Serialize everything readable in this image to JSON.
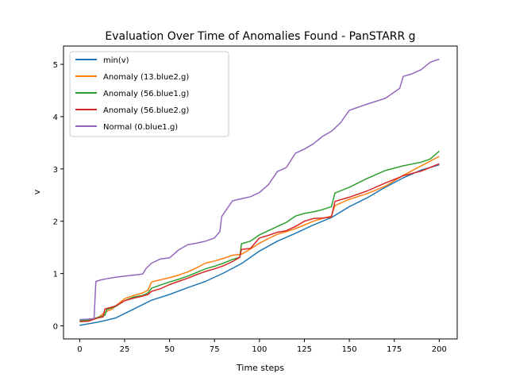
{
  "chart_data": {
    "type": "line",
    "title": "Evaluation Over Time of Anomalies Found - PanSTARR g",
    "xlabel": "Time steps",
    "ylabel": "v",
    "xlim": [
      -9,
      210
    ],
    "ylim": [
      -0.25,
      5.35
    ],
    "xticks": [
      0,
      25,
      50,
      75,
      100,
      125,
      150,
      175,
      200
    ],
    "yticks": [
      0,
      1,
      2,
      3,
      4,
      5
    ],
    "grid": false,
    "legend_position": "upper-left",
    "series": [
      {
        "name": "min(v)",
        "color": "#1f77b4",
        "points": [
          [
            0,
            0.01
          ],
          [
            10,
            0.07
          ],
          [
            20,
            0.15
          ],
          [
            30,
            0.32
          ],
          [
            40,
            0.49
          ],
          [
            50,
            0.6
          ],
          [
            60,
            0.73
          ],
          [
            70,
            0.85
          ],
          [
            80,
            1.01
          ],
          [
            90,
            1.19
          ],
          [
            100,
            1.43
          ],
          [
            110,
            1.62
          ],
          [
            120,
            1.77
          ],
          [
            130,
            1.93
          ],
          [
            140,
            2.07
          ],
          [
            150,
            2.28
          ],
          [
            160,
            2.45
          ],
          [
            170,
            2.65
          ],
          [
            180,
            2.83
          ],
          [
            190,
            2.98
          ],
          [
            200,
            3.08
          ]
        ]
      },
      {
        "name": "Anomaly (13.blue2.g)",
        "color": "#ff7f0e",
        "points": [
          [
            0,
            0.09
          ],
          [
            5,
            0.1
          ],
          [
            10,
            0.15
          ],
          [
            14,
            0.26
          ],
          [
            18,
            0.32
          ],
          [
            20,
            0.38
          ],
          [
            25,
            0.52
          ],
          [
            30,
            0.58
          ],
          [
            35,
            0.63
          ],
          [
            38,
            0.68
          ],
          [
            40,
            0.84
          ],
          [
            45,
            0.88
          ],
          [
            50,
            0.92
          ],
          [
            55,
            0.97
          ],
          [
            60,
            1.03
          ],
          [
            65,
            1.11
          ],
          [
            70,
            1.2
          ],
          [
            75,
            1.24
          ],
          [
            80,
            1.29
          ],
          [
            85,
            1.35
          ],
          [
            90,
            1.37
          ],
          [
            95,
            1.47
          ],
          [
            100,
            1.58
          ],
          [
            105,
            1.67
          ],
          [
            110,
            1.75
          ],
          [
            115,
            1.8
          ],
          [
            120,
            1.86
          ],
          [
            125,
            1.93
          ],
          [
            130,
            2.0
          ],
          [
            135,
            2.05
          ],
          [
            140,
            2.1
          ],
          [
            142,
            2.3
          ],
          [
            150,
            2.42
          ],
          [
            160,
            2.53
          ],
          [
            170,
            2.67
          ],
          [
            180,
            2.88
          ],
          [
            190,
            3.06
          ],
          [
            200,
            3.24
          ]
        ]
      },
      {
        "name": "Anomaly (56.blue1.g)",
        "color": "#2ca02c",
        "points": [
          [
            0,
            0.1
          ],
          [
            5,
            0.11
          ],
          [
            10,
            0.16
          ],
          [
            14,
            0.2
          ],
          [
            15,
            0.31
          ],
          [
            20,
            0.37
          ],
          [
            25,
            0.48
          ],
          [
            30,
            0.55
          ],
          [
            35,
            0.58
          ],
          [
            38,
            0.63
          ],
          [
            40,
            0.72
          ],
          [
            45,
            0.78
          ],
          [
            50,
            0.84
          ],
          [
            55,
            0.89
          ],
          [
            60,
            0.95
          ],
          [
            65,
            1.02
          ],
          [
            70,
            1.09
          ],
          [
            75,
            1.14
          ],
          [
            80,
            1.2
          ],
          [
            85,
            1.27
          ],
          [
            89,
            1.31
          ],
          [
            90,
            1.57
          ],
          [
            95,
            1.62
          ],
          [
            100,
            1.74
          ],
          [
            105,
            1.82
          ],
          [
            110,
            1.9
          ],
          [
            115,
            1.98
          ],
          [
            120,
            2.1
          ],
          [
            125,
            2.15
          ],
          [
            130,
            2.18
          ],
          [
            135,
            2.22
          ],
          [
            140,
            2.28
          ],
          [
            142,
            2.54
          ],
          [
            150,
            2.65
          ],
          [
            160,
            2.82
          ],
          [
            170,
            2.97
          ],
          [
            180,
            3.06
          ],
          [
            190,
            3.13
          ],
          [
            195,
            3.19
          ],
          [
            200,
            3.34
          ]
        ]
      },
      {
        "name": "Anomaly (56.blue2.g)",
        "color": "#d62728",
        "points": [
          [
            0,
            0.08
          ],
          [
            5,
            0.09
          ],
          [
            10,
            0.15
          ],
          [
            13,
            0.17
          ],
          [
            14,
            0.32
          ],
          [
            20,
            0.38
          ],
          [
            25,
            0.48
          ],
          [
            30,
            0.53
          ],
          [
            35,
            0.57
          ],
          [
            38,
            0.6
          ],
          [
            40,
            0.66
          ],
          [
            45,
            0.71
          ],
          [
            50,
            0.79
          ],
          [
            55,
            0.85
          ],
          [
            60,
            0.91
          ],
          [
            65,
            0.98
          ],
          [
            70,
            1.04
          ],
          [
            75,
            1.09
          ],
          [
            80,
            1.15
          ],
          [
            85,
            1.23
          ],
          [
            89,
            1.31
          ],
          [
            90,
            1.46
          ],
          [
            95,
            1.48
          ],
          [
            100,
            1.68
          ],
          [
            105,
            1.73
          ],
          [
            110,
            1.79
          ],
          [
            115,
            1.82
          ],
          [
            120,
            1.9
          ],
          [
            125,
            2.0
          ],
          [
            130,
            2.05
          ],
          [
            135,
            2.06
          ],
          [
            140,
            2.08
          ],
          [
            142,
            2.38
          ],
          [
            150,
            2.46
          ],
          [
            160,
            2.58
          ],
          [
            170,
            2.73
          ],
          [
            180,
            2.87
          ],
          [
            190,
            2.96
          ],
          [
            200,
            3.1
          ]
        ]
      },
      {
        "name": "Normal (0.blue1.g)",
        "color": "#9467bd",
        "points": [
          [
            0,
            0.12
          ],
          [
            5,
            0.13
          ],
          [
            8,
            0.14
          ],
          [
            9,
            0.85
          ],
          [
            12,
            0.88
          ],
          [
            15,
            0.9
          ],
          [
            20,
            0.93
          ],
          [
            25,
            0.95
          ],
          [
            30,
            0.97
          ],
          [
            35,
            0.99
          ],
          [
            37,
            1.1
          ],
          [
            40,
            1.2
          ],
          [
            45,
            1.28
          ],
          [
            50,
            1.3
          ],
          [
            55,
            1.45
          ],
          [
            60,
            1.55
          ],
          [
            65,
            1.58
          ],
          [
            70,
            1.62
          ],
          [
            75,
            1.68
          ],
          [
            78,
            1.8
          ],
          [
            79,
            2.09
          ],
          [
            85,
            2.39
          ],
          [
            90,
            2.43
          ],
          [
            95,
            2.47
          ],
          [
            100,
            2.55
          ],
          [
            105,
            2.7
          ],
          [
            108,
            2.85
          ],
          [
            110,
            2.95
          ],
          [
            115,
            3.03
          ],
          [
            120,
            3.3
          ],
          [
            125,
            3.38
          ],
          [
            130,
            3.48
          ],
          [
            135,
            3.62
          ],
          [
            140,
            3.72
          ],
          [
            145,
            3.88
          ],
          [
            150,
            4.12
          ],
          [
            160,
            4.24
          ],
          [
            170,
            4.35
          ],
          [
            178,
            4.54
          ],
          [
            180,
            4.77
          ],
          [
            185,
            4.82
          ],
          [
            190,
            4.9
          ],
          [
            195,
            5.04
          ],
          [
            200,
            5.1
          ]
        ]
      }
    ]
  }
}
